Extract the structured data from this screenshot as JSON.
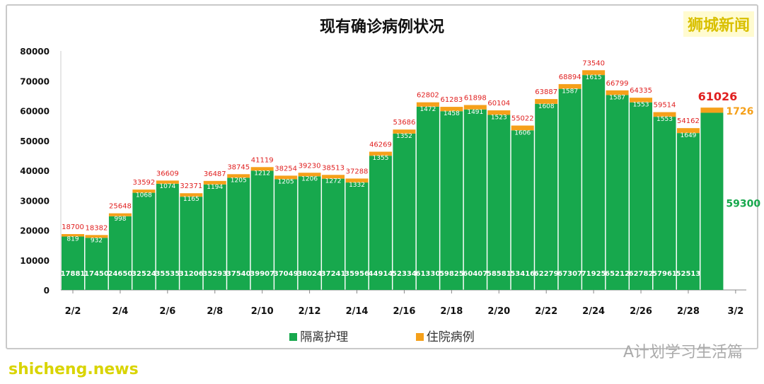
{
  "chart_data": {
    "type": "bar",
    "stacked": true,
    "title": "现有确诊病例状况",
    "categories": [
      "2/2",
      "2/3",
      "2/4",
      "2/5",
      "2/6",
      "2/7",
      "2/8",
      "2/9",
      "2/10",
      "2/11",
      "2/12",
      "2/13",
      "2/14",
      "2/15",
      "2/16",
      "2/17",
      "2/18",
      "2/19",
      "2/20",
      "2/21",
      "2/22",
      "2/23",
      "2/24",
      "2/25",
      "2/26",
      "2/27",
      "2/28",
      "3/1"
    ],
    "x_tick_labels": [
      "2/2",
      "2/4",
      "2/6",
      "2/8",
      "2/10",
      "2/12",
      "2/14",
      "2/16",
      "2/18",
      "2/20",
      "2/22",
      "2/24",
      "2/26",
      "2/28",
      "3/2"
    ],
    "series": [
      {
        "name": "隔离护理",
        "color": "#17a84d",
        "values": [
          17881,
          17450,
          24650,
          32524,
          35535,
          31206,
          35293,
          37540,
          39907,
          37049,
          38024,
          37241,
          35956,
          44914,
          52334,
          61330,
          59825,
          60407,
          58581,
          53416,
          62279,
          67307,
          71925,
          65212,
          62782,
          57961,
          52513,
          59300
        ]
      },
      {
        "name": "住院病例",
        "color": "#f5a01a",
        "values": [
          819,
          932,
          998,
          1068,
          1074,
          1165,
          1194,
          1205,
          1212,
          1205,
          1206,
          1272,
          1332,
          1355,
          1352,
          1472,
          1458,
          1491,
          1523,
          1606,
          1608,
          1587,
          1615,
          1587,
          1553,
          1553,
          1649,
          1726
        ]
      }
    ],
    "totals": [
      18700,
      18382,
      25648,
      33592,
      36609,
      32371,
      36487,
      38745,
      41119,
      38254,
      39230,
      38513,
      37288,
      46269,
      53686,
      62802,
      61283,
      61898,
      60104,
      55022,
      63887,
      68894,
      73540,
      66799,
      64335,
      59514,
      54162,
      61026
    ],
    "total_color": "#e02020",
    "ylim": [
      0,
      80000
    ],
    "y_ticks": [
      0,
      10000,
      20000,
      30000,
      40000,
      50000,
      60000,
      70000,
      80000
    ],
    "grid": false,
    "legend": "bottom"
  },
  "brand": "狮城新闻",
  "watermark_site": "shicheng.news",
  "watermark_wechat": "A计划学习生活篇"
}
